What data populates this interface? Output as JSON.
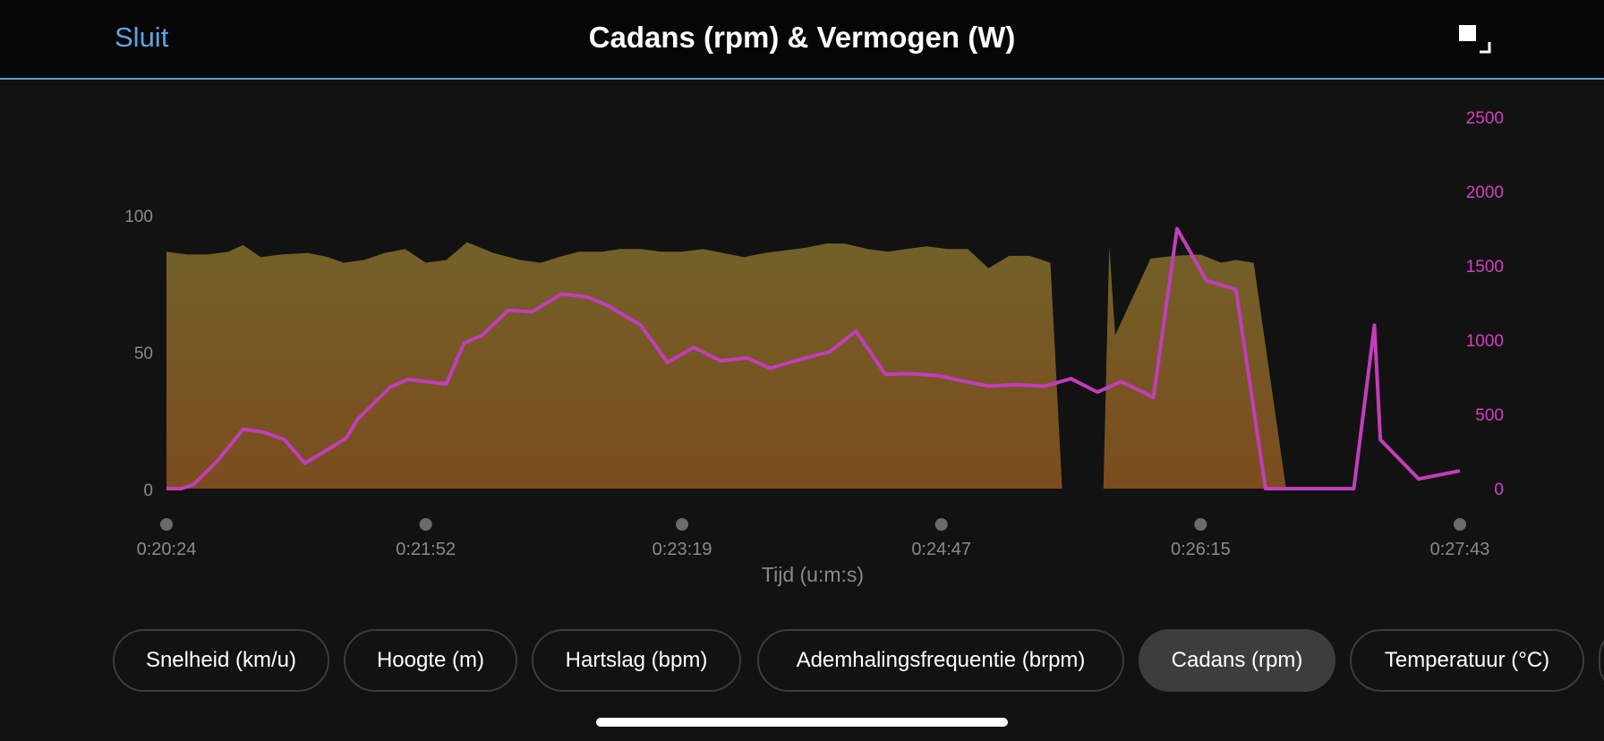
{
  "header": {
    "close_label": "Sluit",
    "title": "Cadans (rpm) & Vermogen (W)",
    "expand_icon": "expand-icon"
  },
  "chart_data": {
    "type": "area",
    "xlabel": "Tijd (u:m:s)",
    "x_ticks": [
      "0:20:24",
      "0:21:52",
      "0:23:19",
      "0:24:47",
      "0:26:15",
      "0:27:43"
    ],
    "left_axis": {
      "ticks": [
        0,
        50,
        100
      ],
      "range": [
        0,
        100
      ]
    },
    "right_axis": {
      "ticks": [
        0,
        500,
        1000,
        1500,
        2000,
        2500
      ],
      "range": [
        0,
        2500
      ],
      "color": "#d43fc2"
    },
    "grid": false,
    "series": [
      {
        "kind": "area",
        "axis": "left",
        "color": "#7a5a24",
        "points": [
          [
            "0:20:24",
            86.5
          ],
          [
            "0:20:31",
            85.5
          ],
          [
            "0:20:38",
            85.5
          ],
          [
            "0:20:45",
            86.5
          ],
          [
            "0:20:50",
            89
          ],
          [
            "0:20:56",
            84.5
          ],
          [
            "0:21:03",
            85.5
          ],
          [
            "0:21:12",
            86
          ],
          [
            "0:21:19",
            84.5
          ],
          [
            "0:21:24",
            82.5
          ],
          [
            "0:21:31",
            83.5
          ],
          [
            "0:21:38",
            86
          ],
          [
            "0:21:45",
            87.5
          ],
          [
            "0:21:52",
            82.5
          ],
          [
            "0:21:59",
            83.5
          ],
          [
            "0:22:06",
            90
          ],
          [
            "0:22:15",
            86
          ],
          [
            "0:22:24",
            83.5
          ],
          [
            "0:22:31",
            82.5
          ],
          [
            "0:22:37",
            84.5
          ],
          [
            "0:22:44",
            86.5
          ],
          [
            "0:22:52",
            86.5
          ],
          [
            "0:22:58",
            87.5
          ],
          [
            "0:23:05",
            87.5
          ],
          [
            "0:23:12",
            86.5
          ],
          [
            "0:23:19",
            86.5
          ],
          [
            "0:23:26",
            87.5
          ],
          [
            "0:23:33",
            86
          ],
          [
            "0:23:40",
            84.5
          ],
          [
            "0:23:47",
            86
          ],
          [
            "0:23:54",
            87
          ],
          [
            "0:24:01",
            88
          ],
          [
            "0:24:08",
            89.5
          ],
          [
            "0:24:14",
            89.5
          ],
          [
            "0:24:22",
            87.5
          ],
          [
            "0:24:29",
            86.5
          ],
          [
            "0:24:35",
            87.5
          ],
          [
            "0:24:42",
            88.5
          ],
          [
            "0:24:49",
            87.5
          ],
          [
            "0:24:56",
            87.5
          ],
          [
            "0:25:03",
            80.5
          ],
          [
            "0:25:10",
            85
          ],
          [
            "0:25:17",
            85
          ],
          [
            "0:25:24",
            82.5
          ],
          [
            "0:25:28",
            0
          ],
          [
            "0:25:31",
            0
          ],
          [
            "0:25:35",
            0
          ],
          [
            "0:25:42",
            0
          ],
          [
            "0:25:44",
            88.5
          ],
          [
            "0:25:46",
            56
          ],
          [
            "0:25:58",
            84
          ],
          [
            "0:26:06",
            85
          ],
          [
            "0:26:15",
            85.5
          ],
          [
            "0:26:22",
            82.5
          ],
          [
            "0:26:27",
            83.5
          ],
          [
            "0:26:33",
            82.5
          ],
          [
            "0:26:44",
            0
          ],
          [
            "0:27:43",
            0
          ]
        ]
      },
      {
        "kind": "line",
        "axis": "right",
        "color": "#c33dbb",
        "points": [
          [
            "0:20:24",
            0
          ],
          [
            "0:20:29",
            0
          ],
          [
            "0:20:33",
            25
          ],
          [
            "0:20:41",
            180
          ],
          [
            "0:20:50",
            400
          ],
          [
            "0:20:57",
            380
          ],
          [
            "0:21:04",
            330
          ],
          [
            "0:21:11",
            170
          ],
          [
            "0:21:25",
            340
          ],
          [
            "0:21:29",
            470
          ],
          [
            "0:21:40",
            685
          ],
          [
            "0:21:46",
            735
          ],
          [
            "0:21:59",
            705
          ],
          [
            "0:22:05",
            980
          ],
          [
            "0:22:11",
            1030
          ],
          [
            "0:22:20",
            1200
          ],
          [
            "0:22:28",
            1190
          ],
          [
            "0:22:38",
            1310
          ],
          [
            "0:22:47",
            1290
          ],
          [
            "0:22:54",
            1230
          ],
          [
            "0:23:05",
            1100
          ],
          [
            "0:23:14",
            850
          ],
          [
            "0:23:23",
            950
          ],
          [
            "0:23:32",
            860
          ],
          [
            "0:23:41",
            880
          ],
          [
            "0:23:49",
            810
          ],
          [
            "0:23:59",
            870
          ],
          [
            "0:24:09",
            920
          ],
          [
            "0:24:18",
            1060
          ],
          [
            "0:24:28",
            770
          ],
          [
            "0:24:36",
            775
          ],
          [
            "0:24:46",
            760
          ],
          [
            "0:24:53",
            730
          ],
          [
            "0:25:03",
            690
          ],
          [
            "0:25:12",
            700
          ],
          [
            "0:25:22",
            690
          ],
          [
            "0:25:31",
            740
          ],
          [
            "0:25:40",
            650
          ],
          [
            "0:25:48",
            720
          ],
          [
            "0:25:59",
            615
          ],
          [
            "0:26:07",
            1750
          ],
          [
            "0:26:17",
            1400
          ],
          [
            "0:26:27",
            1340
          ],
          [
            "0:26:37",
            0
          ],
          [
            "0:26:55",
            0
          ],
          [
            "0:27:07",
            0
          ],
          [
            "0:27:14",
            1100
          ],
          [
            "0:27:16",
            330
          ],
          [
            "0:27:29",
            65
          ],
          [
            "0:27:38",
            100
          ],
          [
            "0:27:43",
            120
          ]
        ]
      }
    ]
  },
  "chips": [
    {
      "label": "Snelheid (km/u)",
      "active": false
    },
    {
      "label": "Hoogte (m)",
      "active": false
    },
    {
      "label": "Hartslag (bpm)",
      "active": false
    },
    {
      "label": "Ademhalingsfrequentie (brpm)",
      "active": false
    },
    {
      "label": "Cadans (rpm)",
      "active": true
    },
    {
      "label": "Temperatuur (°C)",
      "active": false
    },
    {
      "label": "",
      "active": false
    }
  ]
}
